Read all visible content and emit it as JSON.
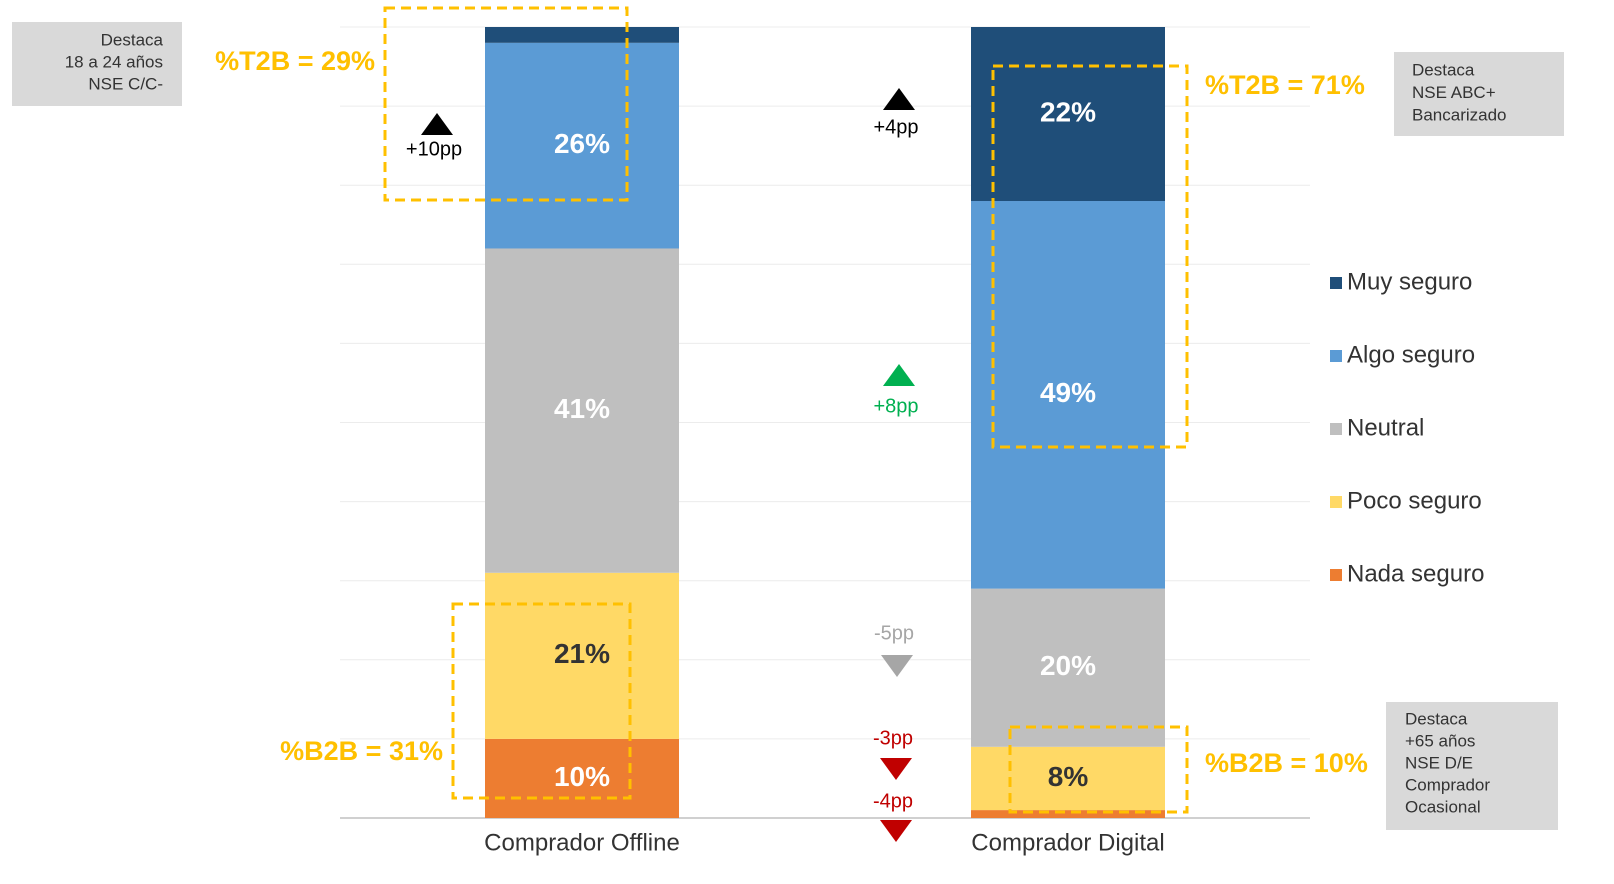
{
  "chart_data": {
    "type": "stacked_bar",
    "categories": [
      "Comprador Offline",
      "Comprador Digital"
    ],
    "series": [
      {
        "name": "Nada seguro",
        "color": "#ed7d31",
        "label_color": "#ffffff",
        "values": [
          10,
          1
        ],
        "value_labels": [
          "10%",
          null
        ]
      },
      {
        "name": "Poco seguro",
        "color": "#ffd966",
        "label_color": "#333333",
        "values": [
          21,
          8
        ],
        "value_labels": [
          "21%",
          "8%"
        ]
      },
      {
        "name": "Neutral",
        "color": "#bfbfbf",
        "label_color": "#ffffff",
        "values": [
          41,
          20
        ],
        "value_labels": [
          "41%",
          "20%"
        ]
      },
      {
        "name": "Algo seguro",
        "color": "#5b9bd5",
        "label_color": "#ffffff",
        "values": [
          26,
          49
        ],
        "value_labels": [
          "26%",
          "49%"
        ]
      },
      {
        "name": "Muy seguro",
        "color": "#1f4e79",
        "label_color": "#ffffff",
        "values": [
          2,
          22
        ],
        "value_labels": [
          null,
          "22%"
        ]
      }
    ],
    "ylim": [
      0,
      100
    ],
    "yticks": [
      0,
      10,
      20,
      30,
      40,
      50,
      60,
      70,
      80,
      90,
      100
    ],
    "grid": true,
    "highlights": [
      "%T2B = 29%",
      "%B2B = 31%",
      "%T2B = 71%",
      "%B2B = 10%"
    ],
    "highlight_color": "#ffc000",
    "changes": [
      {
        "text": "+10pp",
        "color": "#000000",
        "direction": "up"
      },
      {
        "text": "+4pp",
        "color": "#000000",
        "direction": "up"
      },
      {
        "text": "+8pp",
        "color": "#00b050",
        "direction": "up"
      },
      {
        "text": "-5pp",
        "color": "#a6a6a6",
        "direction": "down"
      },
      {
        "text": "-3pp",
        "color": "#c00000",
        "direction": "down"
      },
      {
        "text": "-4pp",
        "color": "#c00000",
        "direction": "down"
      }
    ],
    "callouts": [
      [
        "Destaca",
        "18 a 24 años",
        "NSE C/C-"
      ],
      [
        "Destaca",
        "NSE ABC+",
        "Bancarizado"
      ],
      [
        "Destaca",
        "+65 años",
        "NSE D/E",
        "Comprador",
        "Ocasional"
      ]
    ]
  }
}
